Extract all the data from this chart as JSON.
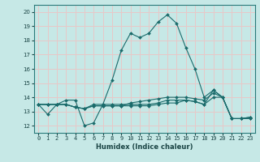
{
  "xlabel": "Humidex (Indice chaleur)",
  "ylabel": "",
  "bg_color": "#c6e8e6",
  "grid_color": "#e8c8c8",
  "line_color": "#1a6b6b",
  "xlim": [
    -0.5,
    23.5
  ],
  "ylim": [
    11.5,
    20.5
  ],
  "x_ticks": [
    0,
    1,
    2,
    3,
    4,
    5,
    6,
    7,
    8,
    9,
    10,
    11,
    12,
    13,
    14,
    15,
    16,
    17,
    18,
    19,
    20,
    21,
    22,
    23
  ],
  "y_ticks": [
    12,
    13,
    14,
    15,
    16,
    17,
    18,
    19,
    20
  ],
  "series": [
    [
      13.5,
      12.8,
      13.5,
      13.8,
      13.8,
      12.0,
      12.2,
      13.5,
      15.2,
      17.3,
      18.5,
      18.2,
      18.5,
      19.3,
      19.8,
      19.2,
      17.5,
      16.0,
      14.0,
      14.5,
      14.0,
      12.5,
      12.5,
      12.5
    ],
    [
      13.5,
      13.5,
      13.5,
      13.5,
      13.3,
      13.2,
      13.5,
      13.5,
      13.5,
      13.5,
      13.5,
      13.5,
      13.5,
      13.6,
      13.8,
      13.8,
      13.8,
      13.7,
      13.5,
      14.5,
      14.0,
      12.5,
      12.5,
      12.5
    ],
    [
      13.5,
      13.5,
      13.5,
      13.5,
      13.3,
      13.2,
      13.4,
      13.4,
      13.4,
      13.4,
      13.4,
      13.4,
      13.4,
      13.5,
      13.6,
      13.6,
      13.8,
      13.7,
      13.5,
      14.0,
      14.0,
      12.5,
      12.5,
      12.6
    ],
    [
      13.5,
      13.5,
      13.5,
      13.5,
      13.3,
      13.2,
      13.4,
      13.4,
      13.4,
      13.4,
      13.6,
      13.7,
      13.8,
      13.9,
      14.0,
      14.0,
      14.0,
      13.9,
      13.8,
      14.3,
      14.0,
      12.5,
      12.5,
      12.6
    ]
  ]
}
